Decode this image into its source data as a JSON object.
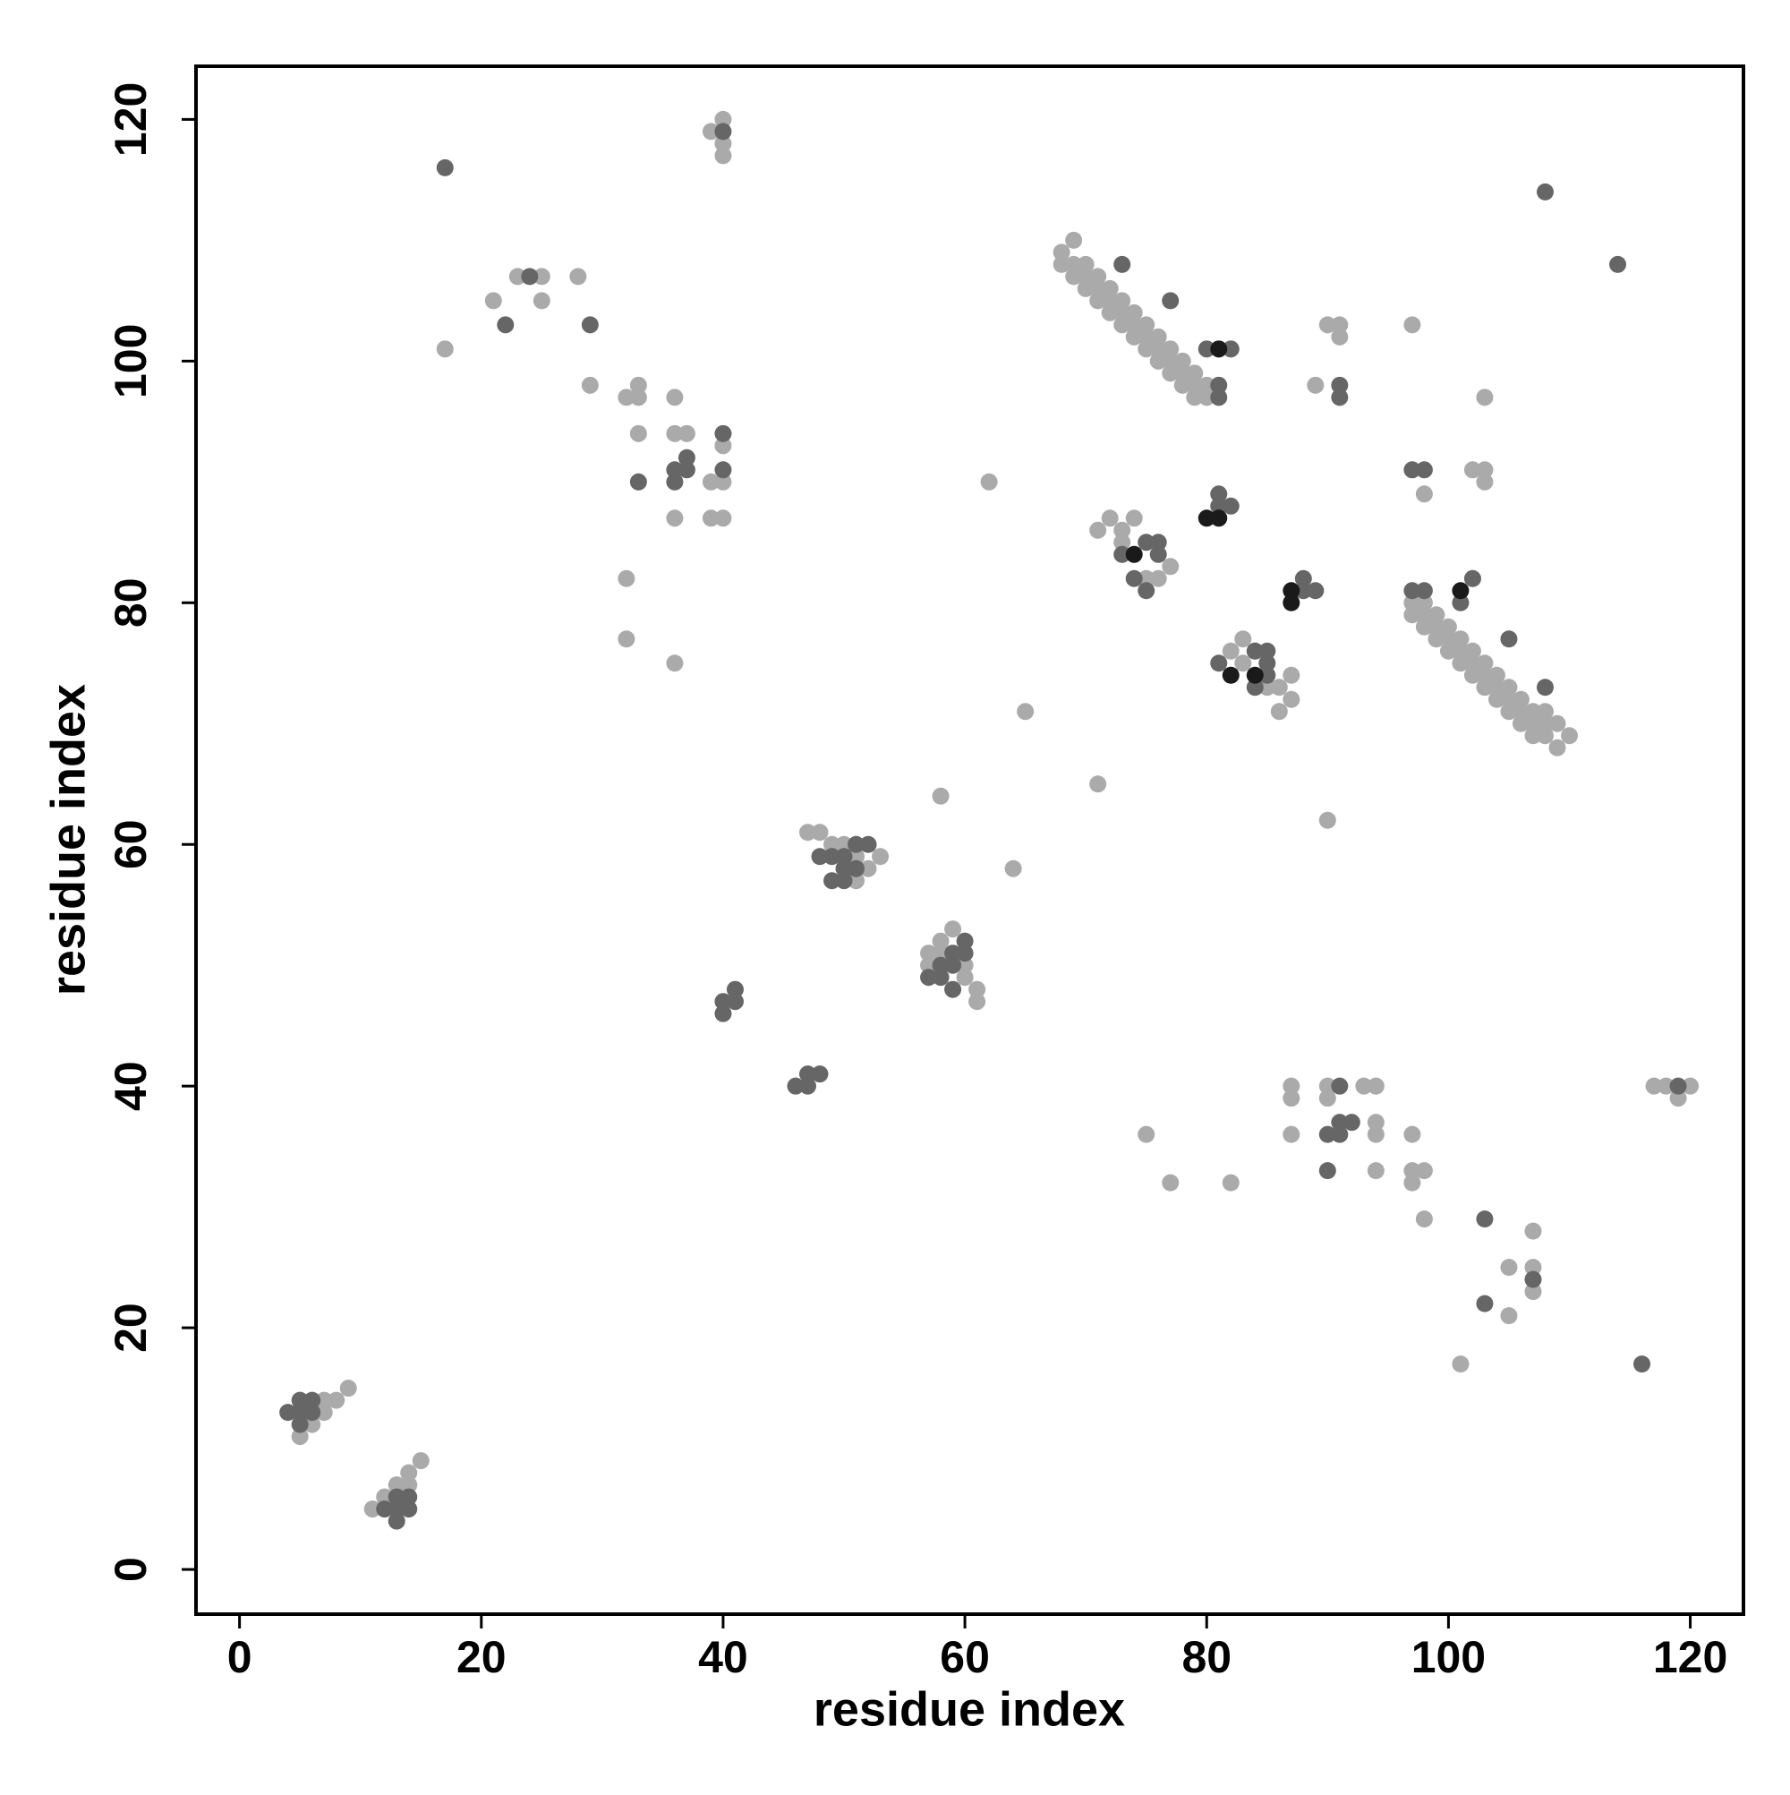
{
  "chart_data": {
    "type": "scatter",
    "xlabel": "residue index",
    "ylabel": "residue index",
    "xlim": [
      -3.6,
      124.4
    ],
    "ylim": [
      -3.7,
      124.4
    ],
    "xticks": [
      0,
      20,
      40,
      60,
      80,
      100,
      120
    ],
    "yticks": [
      0,
      20,
      40,
      60,
      80,
      100,
      120
    ],
    "series": [
      {
        "color": "#aaaaaa",
        "x": [
          5,
          6,
          7,
          7,
          8,
          9,
          11,
          12,
          13,
          14,
          14,
          15,
          17,
          21,
          23,
          25,
          25,
          28,
          29,
          32,
          33,
          33,
          33,
          32,
          32,
          36,
          36,
          37,
          36,
          36,
          39,
          40,
          40,
          39,
          40,
          39,
          40,
          40,
          40
        ],
        "values": [
          11,
          12,
          13,
          14,
          14,
          15,
          5,
          6,
          7,
          7,
          8,
          9,
          101,
          105,
          107,
          107,
          105,
          107,
          98,
          97,
          97,
          98,
          94,
          82,
          77,
          97,
          94,
          94,
          87,
          75,
          90,
          90,
          93,
          87,
          87,
          119,
          120,
          118,
          117
        ]
      },
      {
        "color": "#aaaaaa",
        "x": [
          62,
          65,
          71,
          58,
          64,
          47,
          48,
          49,
          50,
          51,
          52,
          53,
          51,
          57,
          57,
          58,
          59,
          60,
          60,
          61,
          61,
          58
        ],
        "values": [
          90,
          71,
          65,
          64,
          58,
          61,
          61,
          60,
          60,
          59,
          58,
          59,
          57,
          51,
          50,
          52,
          53,
          50,
          49,
          48,
          47,
          51
        ]
      },
      {
        "color": "#aaaaaa",
        "x": [
          72,
          74,
          71,
          73,
          73,
          77,
          76,
          75,
          82,
          83,
          84,
          85,
          86,
          86,
          87,
          87,
          83,
          89,
          90,
          91,
          91,
          90,
          97,
          98,
          102,
          103,
          103,
          103,
          102
        ],
        "values": [
          87,
          87,
          86,
          86,
          85,
          83,
          82,
          82,
          76,
          77,
          76,
          73,
          73,
          71,
          74,
          72,
          75,
          98,
          103,
          103,
          102,
          62,
          103,
          89,
          91,
          91,
          90,
          97,
          82
        ]
      },
      {
        "color": "#aaaaaa",
        "x": [
          75,
          77,
          82,
          87,
          87,
          87,
          90,
          90,
          93,
          94,
          94,
          94,
          94,
          97,
          97,
          97,
          98,
          98,
          101,
          105,
          105,
          107,
          107,
          107,
          117,
          118,
          119,
          120
        ],
        "values": [
          36,
          32,
          32,
          40,
          39,
          36,
          40,
          39,
          40,
          40,
          37,
          36,
          33,
          36,
          33,
          32,
          33,
          29,
          17,
          25,
          21,
          28,
          25,
          23,
          40,
          40,
          39,
          40
        ]
      },
      {
        "color": "#aaaaaa",
        "x": [
          68,
          68,
          69,
          69,
          69,
          70,
          70,
          70,
          71,
          71,
          71,
          72,
          72,
          72,
          73,
          73,
          73,
          74,
          74,
          74,
          75,
          75,
          75,
          76,
          76,
          76,
          77,
          77,
          77,
          78,
          78,
          78,
          79,
          79,
          79,
          80,
          80
        ],
        "values": [
          108,
          109,
          107,
          108,
          110,
          106,
          107,
          108,
          105,
          106,
          107,
          104,
          105,
          106,
          103,
          104,
          105,
          102,
          103,
          104,
          101,
          102,
          103,
          100,
          101,
          102,
          99,
          100,
          101,
          98,
          99,
          100,
          97,
          98,
          99,
          97,
          98
        ]
      },
      {
        "color": "#aaaaaa",
        "x": [
          97,
          97,
          98,
          98,
          98,
          99,
          99,
          99,
          100,
          100,
          100,
          101,
          101,
          101,
          102,
          102,
          102,
          103,
          103,
          103,
          104,
          104,
          104,
          105,
          105,
          105,
          106,
          106,
          106,
          107,
          107,
          107,
          108,
          108,
          108,
          109,
          109,
          110
        ],
        "values": [
          79,
          80,
          78,
          79,
          80,
          77,
          78,
          79,
          76,
          77,
          78,
          75,
          76,
          77,
          74,
          75,
          76,
          73,
          74,
          75,
          72,
          73,
          74,
          71,
          72,
          73,
          70,
          71,
          72,
          69,
          70,
          71,
          69,
          70,
          71,
          68,
          70,
          69
        ]
      },
      {
        "color": "#666666",
        "x": [
          4,
          5,
          6,
          5,
          6,
          5,
          12,
          13,
          13,
          14,
          14,
          13,
          17,
          22,
          24,
          29,
          33,
          36,
          36,
          37,
          37,
          40,
          40,
          40,
          40,
          40,
          41,
          41,
          46,
          47,
          47,
          48,
          48,
          49,
          50,
          50,
          49,
          50,
          51,
          52,
          51,
          57,
          58,
          58,
          59,
          59,
          59,
          60,
          60,
          73,
          77,
          73,
          75,
          76,
          76,
          75,
          74,
          80,
          82,
          81,
          81,
          81,
          81,
          82,
          81,
          84,
          85,
          85,
          84,
          85,
          88,
          88,
          89,
          91,
          91,
          108,
          114,
          97,
          98,
          97,
          98,
          101,
          102,
          105,
          108,
          90,
          90,
          91,
          91,
          91,
          92,
          103,
          103,
          107,
          116,
          119
        ],
        "values": [
          13,
          14,
          14,
          13,
          13,
          12,
          5,
          5,
          6,
          6,
          5,
          4,
          116,
          103,
          107,
          103,
          90,
          91,
          90,
          92,
          91,
          94,
          91,
          119,
          47,
          46,
          48,
          47,
          40,
          40,
          41,
          41,
          59,
          59,
          59,
          58,
          57,
          57,
          60,
          60,
          58,
          49,
          49,
          50,
          50,
          48,
          51,
          51,
          52,
          108,
          105,
          84,
          85,
          85,
          84,
          81,
          82,
          101,
          101,
          98,
          97,
          89,
          88,
          88,
          75,
          76,
          76,
          75,
          73,
          74,
          82,
          81,
          81,
          98,
          97,
          114,
          108,
          91,
          91,
          81,
          81,
          80,
          82,
          77,
          73,
          36,
          33,
          40,
          37,
          36,
          37,
          29,
          22,
          24,
          17,
          40
        ]
      },
      {
        "color": "#1a1a1a",
        "x": [
          74,
          80,
          81,
          81,
          82,
          84,
          87,
          87,
          101
        ],
        "values": [
          84,
          87,
          87,
          101,
          74,
          74,
          81,
          80,
          81
        ]
      }
    ]
  }
}
